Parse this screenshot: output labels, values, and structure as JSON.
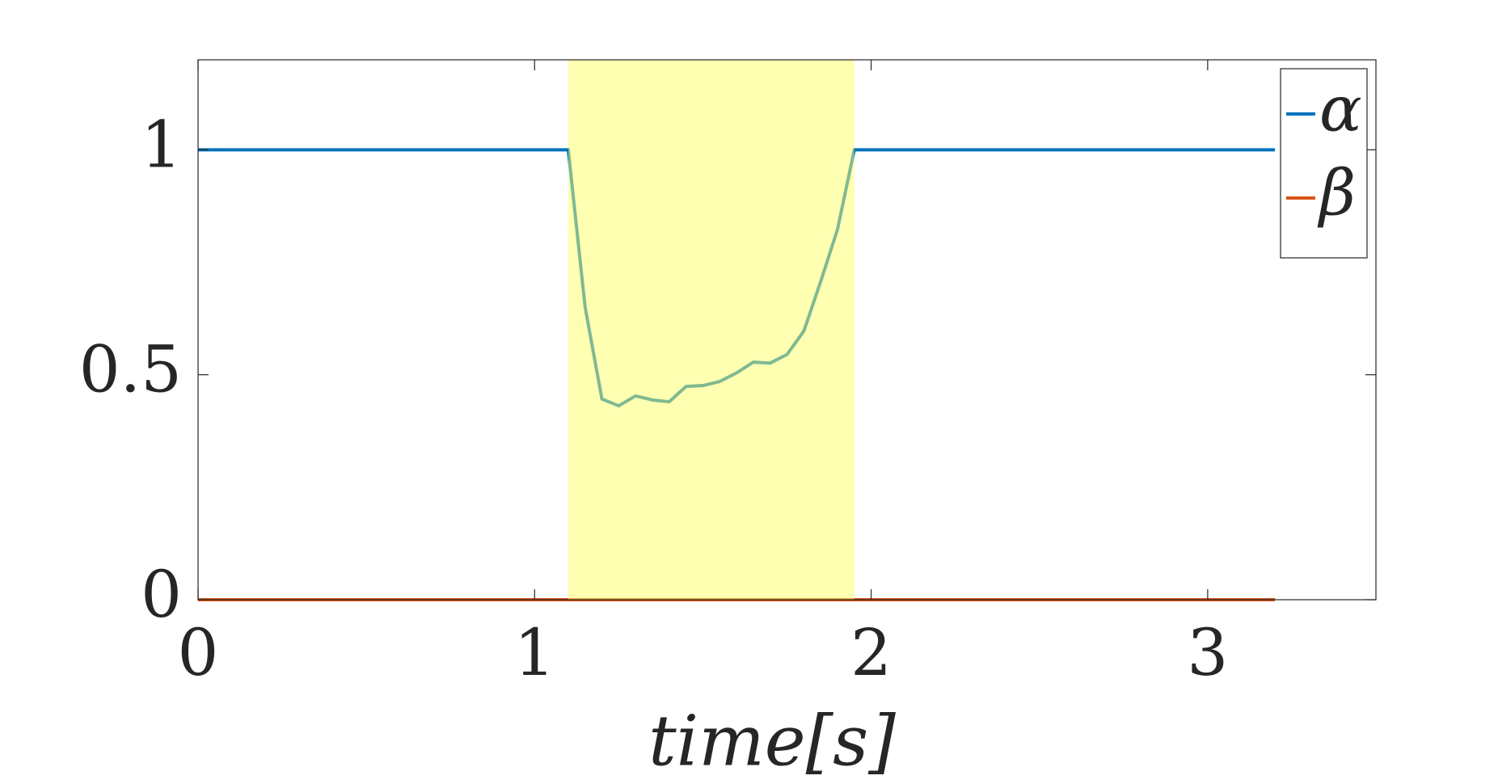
{
  "chart_data": {
    "type": "line",
    "xlabel": "time[s]",
    "x": [
      0,
      1.1,
      1.15,
      1.2,
      1.25,
      1.3,
      1.35,
      1.4,
      1.45,
      1.5,
      1.55,
      1.6,
      1.65,
      1.7,
      1.75,
      1.8,
      1.85,
      1.9,
      1.95,
      3.2
    ],
    "series": [
      {
        "name": "α",
        "color": "#0072bd",
        "values": [
          1,
          1,
          0.651,
          0.446,
          0.431,
          0.453,
          0.444,
          0.44,
          0.474,
          0.476,
          0.485,
          0.504,
          0.528,
          0.526,
          0.545,
          0.597,
          0.707,
          0.823,
          1,
          1
        ]
      },
      {
        "name": "β",
        "color": "#d95319",
        "values": [
          0,
          0,
          0,
          0,
          0,
          0,
          0,
          0,
          0,
          0,
          0,
          0,
          0,
          0,
          0,
          0,
          0,
          0,
          0,
          0
        ]
      }
    ],
    "shade": [
      1.1,
      1.95
    ],
    "shade_color": "#ffff66",
    "xlim": [
      0,
      3.5
    ],
    "xticks": [
      0,
      1,
      2,
      3
    ],
    "ylim": [
      0,
      1.2
    ],
    "yticks": [
      0,
      0.5,
      1
    ],
    "legend": "upper-right"
  }
}
